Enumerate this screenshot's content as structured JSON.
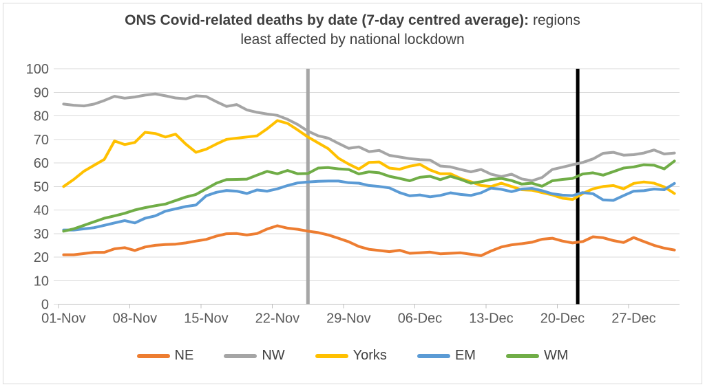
{
  "title": {
    "line1_bold": "ONS Covid-related deaths by date (7-day centred average):",
    "line1_regular": " regions",
    "line2": "least affected by national lockdown"
  },
  "colors": {
    "title_text": "#404040",
    "tick_text": "#595959",
    "gridline": "#d9d9d9",
    "axis_line": "#bfbfbf",
    "frame_border": "#d9d9d9"
  },
  "chart_data": {
    "type": "line",
    "title": "ONS Covid-related deaths by date (7-day centred average): regions least affected by national lockdown",
    "grid": true,
    "legend_position": "bottom",
    "ylim": [
      0,
      100
    ],
    "y_step": 10,
    "y_tick_labels": [
      "0",
      "10",
      "20",
      "30",
      "40",
      "50",
      "60",
      "70",
      "80",
      "90",
      "100"
    ],
    "x_tick_indices": [
      0,
      7,
      14,
      21,
      28,
      35,
      42,
      49,
      56
    ],
    "x_tick_labels": [
      "01-Nov",
      "08-Nov",
      "15-Nov",
      "22-Nov",
      "29-Nov",
      "06-Dec",
      "13-Dec",
      "20-Dec",
      "27-Dec"
    ],
    "x": [
      "01-Nov",
      "02-Nov",
      "03-Nov",
      "04-Nov",
      "05-Nov",
      "06-Nov",
      "07-Nov",
      "08-Nov",
      "09-Nov",
      "10-Nov",
      "11-Nov",
      "12-Nov",
      "13-Nov",
      "14-Nov",
      "15-Nov",
      "16-Nov",
      "17-Nov",
      "18-Nov",
      "19-Nov",
      "20-Nov",
      "21-Nov",
      "22-Nov",
      "23-Nov",
      "24-Nov",
      "25-Nov",
      "26-Nov",
      "27-Nov",
      "28-Nov",
      "29-Nov",
      "30-Nov",
      "01-Dec",
      "02-Dec",
      "03-Dec",
      "04-Dec",
      "05-Dec",
      "06-Dec",
      "07-Dec",
      "08-Dec",
      "09-Dec",
      "10-Dec",
      "11-Dec",
      "12-Dec",
      "13-Dec",
      "14-Dec",
      "15-Dec",
      "16-Dec",
      "17-Dec",
      "18-Dec",
      "19-Dec",
      "20-Dec",
      "21-Dec",
      "22-Dec",
      "23-Dec",
      "24-Dec",
      "25-Dec",
      "26-Dec",
      "27-Dec",
      "28-Dec",
      "29-Dec",
      "30-Dec",
      "31-Dec"
    ],
    "series": [
      {
        "name": "NE",
        "color": "#ED7D31",
        "values": [
          21,
          21,
          21.5,
          22,
          22,
          23.5,
          24,
          22.8,
          24.3,
          25,
          25.3,
          25.5,
          26,
          26.8,
          27.5,
          28.9,
          29.9,
          30,
          29.4,
          30,
          31.9,
          33.3,
          32.3,
          31.8,
          31,
          30.4,
          29.4,
          28,
          26.5,
          24.5,
          23.3,
          22.8,
          22.3,
          22.9,
          21.6,
          21.8,
          22.1,
          21.4,
          21.6,
          21.8,
          21.2,
          20.6,
          22.6,
          24.3,
          25.2,
          25.7,
          26.3,
          27.6,
          28,
          26.8,
          26,
          26.6,
          28.6,
          28.2,
          27,
          26.2,
          28.3,
          26.6,
          25,
          23.8,
          23
        ]
      },
      {
        "name": "NW",
        "color": "#A5A5A5",
        "values": [
          85,
          84.5,
          84.2,
          85,
          86.5,
          88.3,
          87.5,
          88,
          88.8,
          89.3,
          88.5,
          87.6,
          87.2,
          88.5,
          88.2,
          86,
          84,
          84.8,
          82.5,
          81.5,
          80.8,
          80.2,
          78.5,
          76.3,
          73.5,
          71.5,
          70.5,
          68.3,
          66.2,
          66.8,
          64.8,
          65.3,
          63.2,
          62.5,
          61.8,
          61.4,
          61.2,
          58.7,
          58.3,
          57.2,
          56.2,
          57.2,
          55.2,
          54.2,
          55.2,
          53.2,
          52.4,
          53.8,
          57.2,
          58.2,
          59.2,
          60.2,
          61.7,
          64.1,
          64.5,
          63.3,
          63.5,
          64.2,
          65.5,
          63.8,
          64.2
        ]
      },
      {
        "name": "Yorks",
        "color": "#FFC000",
        "values": [
          50,
          53,
          56.5,
          59,
          61.5,
          69.3,
          67.8,
          68.7,
          73,
          72.5,
          71,
          72.2,
          68,
          64.5,
          65.8,
          68,
          70,
          70.5,
          71,
          71.5,
          74.5,
          78,
          76.8,
          74,
          71,
          68.5,
          66,
          62,
          59.5,
          57.4,
          60.2,
          60.4,
          57.8,
          57.3,
          58.6,
          59.4,
          57,
          55.4,
          55.4,
          53.4,
          52,
          50.4,
          50,
          51.4,
          50,
          48.6,
          48.4,
          47.4,
          46.4,
          45,
          44.5,
          47,
          49,
          50,
          50.4,
          49,
          51.3,
          51.9,
          51.4,
          49.8,
          47
        ]
      },
      {
        "name": "EM",
        "color": "#5B9BD5",
        "values": [
          31.5,
          31.5,
          32,
          32.5,
          33.5,
          34.5,
          35.5,
          34.5,
          36.5,
          37.5,
          39.5,
          40.5,
          41.5,
          42.1,
          46,
          47.5,
          48.3,
          48,
          47,
          48.5,
          48,
          49,
          50.4,
          51.5,
          51.9,
          52.2,
          52.3,
          52.3,
          51.6,
          51.4,
          50.4,
          50,
          49.4,
          47.4,
          46,
          46.4,
          45.6,
          46.2,
          47.3,
          46.6,
          46.2,
          47.3,
          49.3,
          48.8,
          47.8,
          48.9,
          49.2,
          48.2,
          46.9,
          46.3,
          46.1,
          47.4,
          46.9,
          44.3,
          44.1,
          46.1,
          48,
          48.2,
          48.9,
          48.6,
          51.3
        ]
      },
      {
        "name": "WM",
        "color": "#70AD47",
        "values": [
          31,
          32,
          33.5,
          35,
          36.5,
          37.5,
          38.6,
          40,
          41,
          41.8,
          42.5,
          44,
          45.5,
          46.6,
          49,
          51.4,
          52.9,
          53,
          53.1,
          54.8,
          56.4,
          55.4,
          56.8,
          55.4,
          55.5,
          57.8,
          58,
          57.5,
          57.2,
          55.3,
          56.2,
          55.8,
          54.3,
          53.4,
          52.4,
          53.9,
          54.3,
          52.9,
          54.3,
          53,
          51.4,
          52,
          53,
          53.4,
          52.5,
          51,
          51.4,
          50.1,
          52.4,
          53,
          53.4,
          55.3,
          55.8,
          54.8,
          56.3,
          57.8,
          58.3,
          59.2,
          59,
          57.5,
          60.8
        ]
      }
    ],
    "vertical_markers": [
      {
        "label": "25-Nov",
        "x_index": 24,
        "color": "#A6A6A6",
        "width": 5
      },
      {
        "label": "21-Dec",
        "x_index": 50.5,
        "color": "#000000",
        "width": 5
      }
    ]
  }
}
